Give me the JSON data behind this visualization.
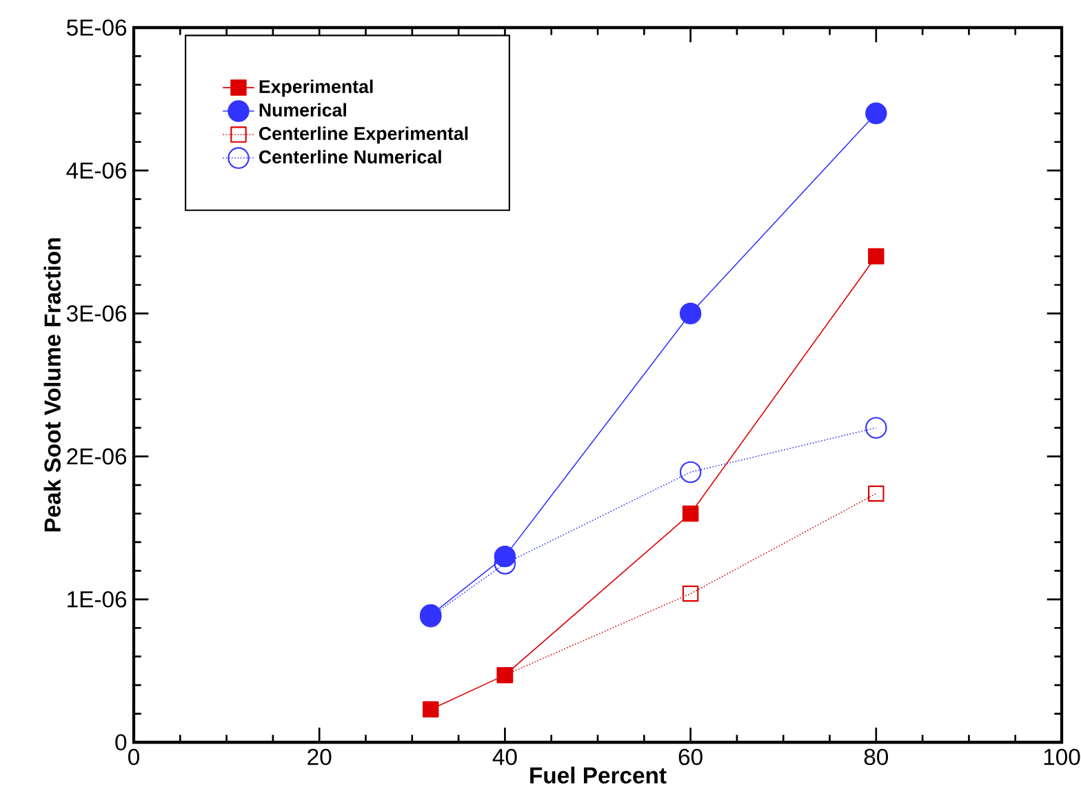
{
  "chart_data": {
    "type": "line",
    "xlabel": "Fuel Percent",
    "ylabel": "Peak Soot Volume Fraction",
    "xlim": [
      0,
      100
    ],
    "xticks": [
      0,
      20,
      40,
      60,
      80,
      100
    ],
    "ylim": [
      0,
      5e-06
    ],
    "yticks": [
      0,
      {
        "value": 1e-06,
        "label": "1E-06"
      },
      {
        "value": 2e-06,
        "label": "2E-06"
      },
      {
        "value": 3e-06,
        "label": "3E-06"
      },
      {
        "value": 4e-06,
        "label": "4E-06"
      },
      {
        "value": 5e-06,
        "label": "5E-06"
      }
    ],
    "grid": false,
    "legend": "top left",
    "series": [
      {
        "name": "Experimental",
        "color": "#dd0000",
        "marker": "square",
        "line_style": "solid",
        "x": [
          32,
          40,
          60,
          80
        ],
        "values": [
          2.3e-07,
          4.7e-07,
          1.6e-06,
          3.4e-06
        ]
      },
      {
        "name": "Numerical",
        "color": "#3333ff",
        "marker": "circle",
        "line_style": "solid",
        "x": [
          32,
          40,
          60,
          80
        ],
        "values": [
          8.9e-07,
          1.3e-06,
          3e-06,
          4.4e-06
        ]
      },
      {
        "name": "Centerline Experimental",
        "color": "#dd0000",
        "marker": "square",
        "line_style": "dotted",
        "x": [
          40,
          60,
          80
        ],
        "values": [
          4.7e-07,
          1.04e-06,
          1.74e-06
        ]
      },
      {
        "name": "Centerline Numerical",
        "color": "#3333ff",
        "marker": "circle",
        "line_style": "dotted",
        "x": [
          32,
          40,
          60,
          80
        ],
        "values": [
          8.8e-07,
          1.25e-06,
          1.89e-06,
          2.2e-06
        ]
      }
    ]
  }
}
